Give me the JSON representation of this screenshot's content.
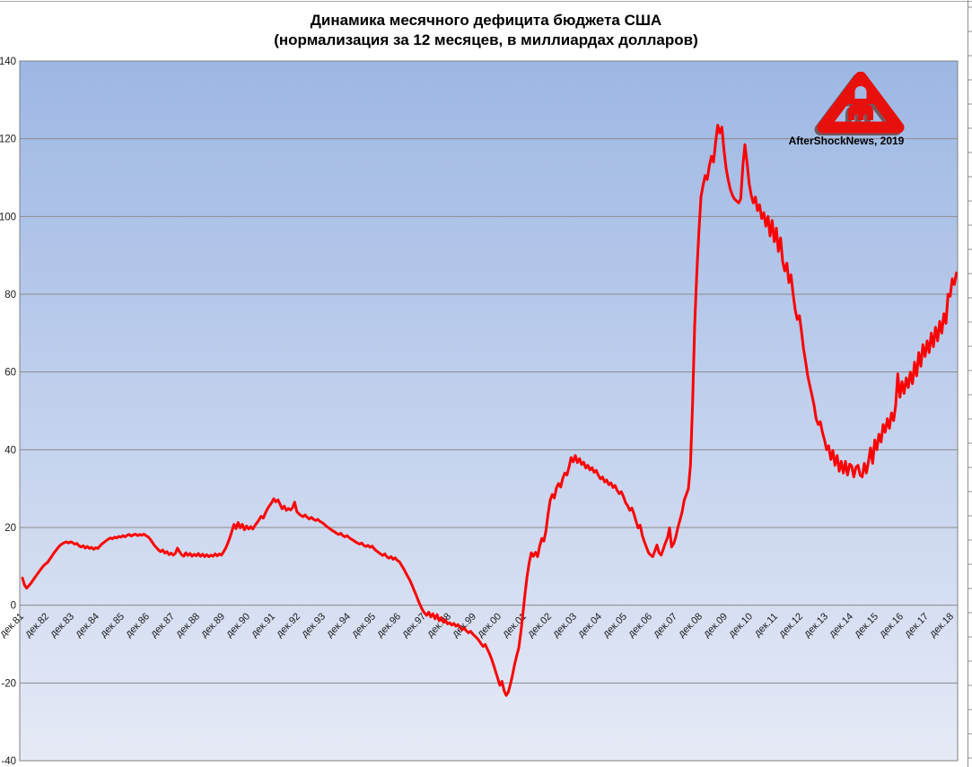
{
  "title": {
    "line1": "Динамика месячного дефицита бюджета США",
    "line2": "(нормализация за 12 месяцев, в миллиардах долларов)"
  },
  "watermark": {
    "credit": "AfterShockNews, 2019",
    "logo_icon": "aftershock-logo",
    "logo_color": "#e8100c",
    "logo_shadow_color": "#6b4646"
  },
  "chart_data": {
    "type": "line",
    "title": "Динамика месячного дефицита бюджета США (нормализация за 12 месяцев, в миллиардах долларов)",
    "xlabel": "",
    "ylabel": "",
    "ylim": [
      -40,
      140
    ],
    "y_ticks": [
      140,
      120,
      100,
      80,
      60,
      40,
      20,
      0,
      -20,
      -40
    ],
    "grid": true,
    "legend": "none",
    "x_axis_labels_on_zero_line": true,
    "line_color": "#ff0000",
    "line_width": 3,
    "plot_bg_gradient_top": "#9db7e4",
    "plot_bg_gradient_bottom": "#e6eaf6",
    "grid_color": "#8a8a8a",
    "border_color": "#808080",
    "x_tick_labels": [
      "дек.81",
      "дек.82",
      "дек.83",
      "дек.84",
      "дек.85",
      "дек.86",
      "дек.87",
      "дек.88",
      "дек.89",
      "дек.90",
      "дек.91",
      "дек.92",
      "дек.93",
      "дек.94",
      "дек.95",
      "дек.96",
      "дек.97",
      "дек.98",
      "дек.99",
      "дек.00",
      "дек.01",
      "дек.02",
      "дек.03",
      "дек.04",
      "дек.05",
      "дек.06",
      "дек.07",
      "дек.08",
      "дек.09",
      "дек.10",
      "дек.11",
      "дек.12",
      "дек.13",
      "дек.14",
      "дек.15",
      "дек.16",
      "дек.17",
      "дек.18"
    ],
    "series": [
      {
        "name": "Месячный дефицит бюджета США, нормализация за 12 месяцев, млрд $",
        "start": "1981-12",
        "frequency": "monthly",
        "values": [
          7.0,
          5.2,
          4.4,
          5.0,
          5.6,
          6.4,
          7.2,
          7.9,
          8.7,
          9.4,
          10.1,
          10.6,
          11.0,
          11.8,
          12.6,
          13.4,
          14.1,
          14.8,
          15.4,
          15.8,
          16.1,
          16.3,
          16.0,
          16.3,
          16.1,
          15.7,
          15.9,
          15.3,
          15.0,
          15.3,
          14.7,
          15.1,
          14.6,
          14.9,
          14.4,
          14.8,
          14.6,
          15.2,
          15.8,
          16.2,
          16.6,
          17.0,
          17.3,
          17.1,
          17.5,
          17.3,
          17.7,
          17.5,
          17.9,
          17.6,
          18.0,
          18.2,
          17.8,
          18.1,
          18.3,
          17.9,
          18.2,
          18.0,
          18.3,
          17.9,
          17.6,
          17.0,
          16.2,
          15.4,
          14.8,
          14.2,
          13.8,
          14.2,
          13.4,
          13.8,
          13.0,
          13.4,
          12.9,
          13.3,
          14.7,
          13.8,
          13.0,
          12.6,
          13.5,
          12.8,
          13.3,
          12.6,
          13.1,
          12.7,
          13.3,
          12.6,
          13.1,
          12.5,
          13.0,
          12.5,
          12.9,
          12.6,
          13.2,
          12.7,
          13.2,
          12.9,
          13.7,
          14.6,
          15.9,
          17.3,
          19.0,
          20.8,
          19.7,
          21.3,
          19.9,
          20.8,
          19.4,
          20.4,
          19.6,
          20.2,
          19.6,
          20.5,
          21.2,
          22.0,
          22.9,
          22.4,
          23.7,
          24.8,
          25.6,
          26.4,
          27.4,
          26.6,
          27.1,
          26.0,
          24.8,
          25.5,
          24.4,
          24.9,
          24.5,
          25.1,
          26.5,
          24.1,
          23.5,
          23.1,
          22.8,
          23.2,
          22.6,
          22.2,
          22.6,
          22.1,
          21.8,
          22.1,
          21.6,
          21.3,
          20.9,
          20.4,
          20.0,
          19.6,
          19.2,
          18.9,
          18.5,
          18.2,
          18.5,
          17.9,
          17.6,
          17.9,
          17.4,
          17.0,
          16.7,
          16.3,
          16.0,
          15.7,
          16.0,
          15.4,
          15.1,
          15.4,
          14.9,
          15.2,
          14.5,
          14.0,
          13.6,
          13.2,
          12.8,
          13.2,
          12.5,
          12.1,
          12.5,
          11.8,
          12.2,
          11.5,
          11.2,
          10.3,
          9.4,
          8.4,
          7.4,
          6.4,
          5.2,
          3.9,
          2.6,
          1.2,
          0.0,
          -1.2,
          -2.0,
          -2.6,
          -1.8,
          -3.0,
          -2.2,
          -3.5,
          -2.4,
          -4.0,
          -3.2,
          -4.4,
          -3.8,
          -4.8,
          -4.5,
          -5.1,
          -4.7,
          -5.4,
          -5.0,
          -5.7,
          -6.3,
          -5.9,
          -6.6,
          -7.1,
          -6.7,
          -7.4,
          -7.9,
          -8.4,
          -9.1,
          -9.9,
          -10.6,
          -10.1,
          -11.3,
          -12.4,
          -13.8,
          -15.4,
          -17.1,
          -18.9,
          -20.6,
          -19.6,
          -22.0,
          -23.2,
          -22.4,
          -20.3,
          -18.0,
          -15.3,
          -13.0,
          -11.0,
          -7.0,
          -2.0,
          3.0,
          7.5,
          11.0,
          13.5,
          12.6,
          13.6,
          12.5,
          15.2,
          17.2,
          16.5,
          19.2,
          23.5,
          27.0,
          28.5,
          27.6,
          30.2,
          31.3,
          30.4,
          32.6,
          34.0,
          33.5,
          35.5,
          38.0,
          36.9,
          38.5,
          36.7,
          37.7,
          36.2,
          36.8,
          35.3,
          36.0,
          34.8,
          35.4,
          34.2,
          34.7,
          33.4,
          32.5,
          33.0,
          31.7,
          32.2,
          31.0,
          31.5,
          30.3,
          30.8,
          29.5,
          28.7,
          29.2,
          27.9,
          26.4,
          25.6,
          24.4,
          25.0,
          23.5,
          21.6,
          19.9,
          20.6,
          17.9,
          16.3,
          14.9,
          13.5,
          12.9,
          12.5,
          14.0,
          15.5,
          13.5,
          12.9,
          14.4,
          16.0,
          17.3,
          19.9,
          15.0,
          15.9,
          17.6,
          20.0,
          22.0,
          24.0,
          27.0,
          28.5,
          30.0,
          36.0,
          52.0,
          72.0,
          85.0,
          96.0,
          105.0,
          108.0,
          110.5,
          109.5,
          113.0,
          115.5,
          114.0,
          119.0,
          123.5,
          121.5,
          123.0,
          117.0,
          112.5,
          109.5,
          107.0,
          105.5,
          104.5,
          104.0,
          103.5,
          104.5,
          113.0,
          118.5,
          114.0,
          108.5,
          105.5,
          103.5,
          105.0,
          101.5,
          103.0,
          99.5,
          101.0,
          97.5,
          100.0,
          95.0,
          99.0,
          93.5,
          97.0,
          91.0,
          94.5,
          88.5,
          86.0,
          88.0,
          83.0,
          85.0,
          80.0,
          76.0,
          73.5,
          74.5,
          70.5,
          66.0,
          62.5,
          59.0,
          56.5,
          54.0,
          51.5,
          48.0,
          46.5,
          47.2,
          44.5,
          42.5,
          40.0,
          41.0,
          37.5,
          39.8,
          36.0,
          38.5,
          34.5,
          37.0,
          34.0,
          37.0,
          33.5,
          36.3,
          35.8,
          33.0,
          35.5,
          36.0,
          33.5,
          33.0,
          36.5,
          34.0,
          37.0,
          40.5,
          36.5,
          42.5,
          40.0,
          44.0,
          42.0,
          46.5,
          44.5,
          48.0,
          45.5,
          49.5,
          47.5,
          51.5,
          59.5,
          53.5,
          57.5,
          54.5,
          58.5,
          56.0,
          60.0,
          57.0,
          62.5,
          59.0,
          65.0,
          61.5,
          67.0,
          64.0,
          68.0,
          65.0,
          70.0,
          66.5,
          71.5,
          68.0,
          73.0,
          70.0,
          75.0,
          72.5,
          80.0,
          79.5,
          84.0,
          82.5,
          85.5
        ]
      }
    ]
  }
}
